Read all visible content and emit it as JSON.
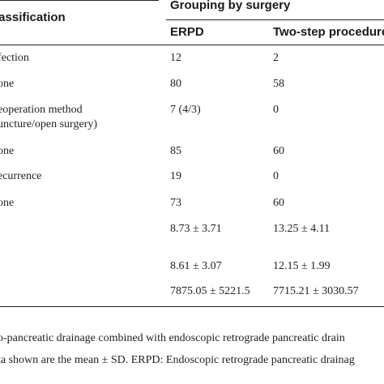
{
  "header": {
    "classification": "lassification",
    "grouping": "Grouping by surgery",
    "erpd": "ERPD",
    "twostep": "Two-step procedure"
  },
  "rows": [
    {
      "label": "fection",
      "erpd": "12",
      "twostep": "2"
    },
    {
      "label": "one",
      "erpd": "80",
      "twostep": "58"
    },
    {
      "label": "eoperation method",
      "label2": "uncture/open surgery)",
      "erpd": "7 (4/3)",
      "twostep": "0"
    },
    {
      "label": "one",
      "erpd": "85",
      "twostep": "60"
    },
    {
      "label": "ecurrence",
      "erpd": "19",
      "twostep": "0"
    },
    {
      "label": "one",
      "erpd": "73",
      "twostep": "60"
    },
    {
      "label": "",
      "erpd": "8.73 ± 3.71",
      "twostep": "13.25 ± 4.11"
    },
    {
      "label": "",
      "erpd": "8.61 ± 3.07",
      "twostep": "12.15 ± 1.99"
    },
    {
      "label": "",
      "erpd": "7875.05 ± 5221.5",
      "twostep": "7715.21 ± 3030.57"
    }
  ],
  "footnote": {
    "line1": "o-pancreatic drainage combined with endoscopic retrograde pancreatic drain",
    "line2": "ta shown are the mean ± SD. ERPD: Endoscopic retrograde pancreatic drainag"
  }
}
